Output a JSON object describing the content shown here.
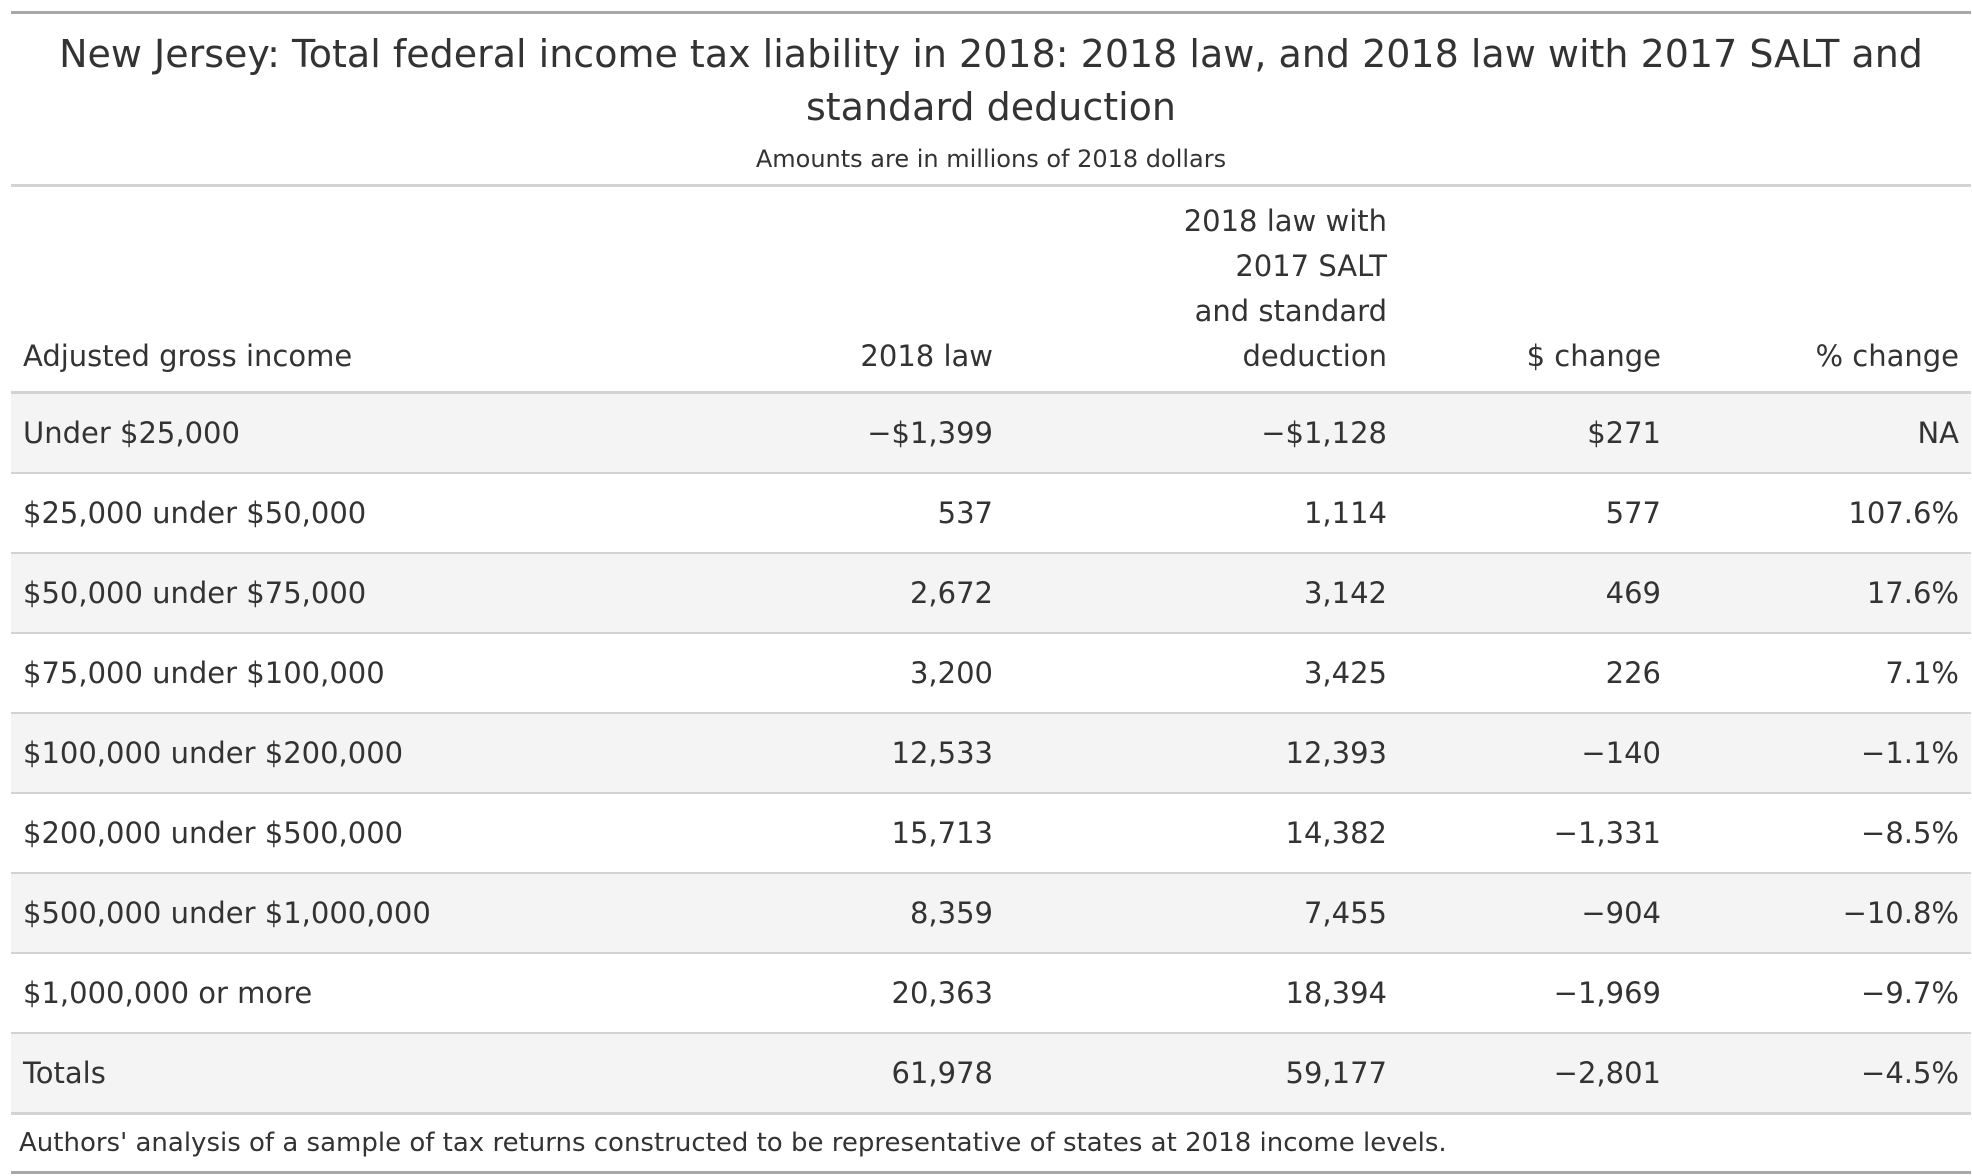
{
  "title": "New Jersey: Total federal income tax liability in 2018: 2018 law, and 2018 law with 2017 SALT and standard deduction",
  "subtitle": "Amounts are in millions of 2018 dollars",
  "columns": {
    "agi": "Adjusted gross income",
    "law2018": "2018 law",
    "law2018_with_2017": [
      "2018 law with",
      "2017 SALT",
      "and standard",
      "deduction"
    ],
    "dollar_change": "$ change",
    "pct_change": "% change"
  },
  "rows": [
    {
      "agi": "Under $25,000",
      "law2018": "−$1,399",
      "alt": "−$1,128",
      "dchange": "$271",
      "pchange": "NA"
    },
    {
      "agi": "$25,000 under $50,000",
      "law2018": "537",
      "alt": "1,114",
      "dchange": "577",
      "pchange": "107.6%"
    },
    {
      "agi": "$50,000 under $75,000",
      "law2018": "2,672",
      "alt": "3,142",
      "dchange": "469",
      "pchange": "17.6%"
    },
    {
      "agi": "$75,000 under $100,000",
      "law2018": "3,200",
      "alt": "3,425",
      "dchange": "226",
      "pchange": "7.1%"
    },
    {
      "agi": "$100,000 under $200,000",
      "law2018": "12,533",
      "alt": "12,393",
      "dchange": "−140",
      "pchange": "−1.1%"
    },
    {
      "agi": "$200,000 under $500,000",
      "law2018": "15,713",
      "alt": "14,382",
      "dchange": "−1,331",
      "pchange": "−8.5%"
    },
    {
      "agi": "$500,000 under $1,000,000",
      "law2018": "8,359",
      "alt": "7,455",
      "dchange": "−904",
      "pchange": "−10.8%"
    },
    {
      "agi": "$1,000,000 or more",
      "law2018": "20,363",
      "alt": "18,394",
      "dchange": "−1,969",
      "pchange": "−9.7%"
    },
    {
      "agi": "Totals",
      "law2018": "61,978",
      "alt": "59,177",
      "dchange": "−2,801",
      "pchange": "−4.5%"
    }
  ],
  "footnote": "Authors' analysis of a sample of tax returns constructed to be representative of states at 2018 income levels.",
  "colors": {
    "text": "#333333",
    "stripe": "#f4f4f4",
    "rule_heavy": "#a8a8a8",
    "rule_light": "#d3d3d3"
  }
}
